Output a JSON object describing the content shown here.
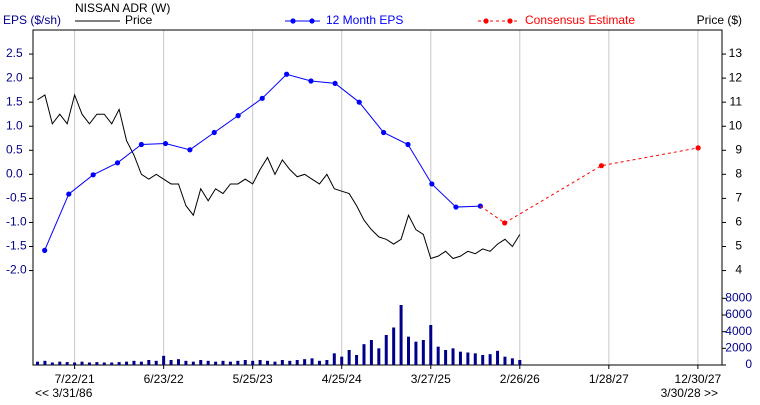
{
  "chart_data": {
    "type": "line",
    "title": "NISSAN ADR (W)",
    "y_label": "EPS ($/sh)",
    "y2_label": "Price ($)",
    "range_start_label": "<< 3/31/86",
    "range_end_label": "3/30/28 >>",
    "grid": "x",
    "xlim": [
      "2/15/21",
      "3/30/28"
    ],
    "xticks": [
      "7/22/21",
      "6/23/22",
      "5/25/23",
      "4/25/24",
      "3/27/25",
      "2/26/26",
      "1/28/27",
      "12/30/27"
    ],
    "ylim": [
      -2.3,
      3.0
    ],
    "yticks": [
      {
        "value": -2,
        "label": "-2.0"
      },
      -1.5,
      {
        "value": -1,
        "label": "-1.0"
      },
      -0.5,
      {
        "value": 0,
        "label": "0.0"
      },
      0.5,
      {
        "value": 1,
        "label": "1.0"
      },
      1.5,
      {
        "value": 2,
        "label": "2.0"
      },
      2.5
    ],
    "y2lim": [
      3.4,
      14.0
    ],
    "y2ticks": [
      4,
      5,
      6,
      7,
      8,
      9,
      10,
      11,
      12,
      13
    ],
    "series": [
      {
        "name": "Price",
        "color": "#000000",
        "axis": "y2",
        "x": [
          "3/4/21",
          "4/1/21",
          "4/29/21",
          "5/27/21",
          "6/24/21",
          "7/22/21",
          "8/19/21",
          "9/16/21",
          "10/14/21",
          "11/11/21",
          "12/9/21",
          "1/6/22",
          "2/3/22",
          "3/3/22",
          "3/31/22",
          "4/28/22",
          "5/26/22",
          "6/23/22",
          "7/21/22",
          "8/18/22",
          "9/15/22",
          "10/13/22",
          "11/10/22",
          "12/8/22",
          "1/5/23",
          "2/2/23",
          "3/2/23",
          "3/30/23",
          "4/27/23",
          "5/25/23",
          "6/22/23",
          "7/20/23",
          "8/17/23",
          "9/14/23",
          "10/12/23",
          "11/9/23",
          "12/7/23",
          "1/4/24",
          "2/1/24",
          "2/29/24",
          "3/28/24",
          "4/25/24",
          "5/23/24",
          "6/20/24",
          "7/18/24",
          "8/15/24",
          "9/12/24",
          "10/10/24",
          "11/7/24",
          "12/5/24",
          "1/2/25",
          "1/30/25",
          "2/27/25",
          "3/27/25",
          "4/24/25",
          "5/22/25",
          "6/19/25",
          "7/17/25",
          "8/14/25",
          "9/11/25",
          "10/9/25",
          "11/6/25",
          "12/4/25",
          "1/1/26",
          "1/29/26",
          "2/26/26"
        ],
        "values": [
          11.1,
          11.3,
          10.1,
          10.5,
          10.1,
          11.3,
          10.5,
          10.1,
          10.5,
          10.5,
          10.1,
          10.7,
          9.4,
          8.8,
          8.0,
          7.8,
          8.0,
          7.8,
          7.6,
          7.6,
          6.7,
          6.3,
          7.4,
          6.9,
          7.4,
          7.2,
          7.6,
          7.6,
          7.8,
          7.6,
          8.2,
          8.7,
          8.0,
          8.6,
          8.2,
          7.9,
          8.0,
          7.8,
          7.6,
          8.0,
          7.4,
          7.3,
          7.2,
          6.7,
          6.1,
          5.7,
          5.4,
          5.3,
          5.1,
          5.3,
          6.3,
          5.7,
          5.5,
          4.5,
          4.6,
          4.8,
          4.5,
          4.6,
          4.8,
          4.7,
          4.9,
          4.8,
          5.1,
          5.3,
          5.0,
          5.5
        ]
      },
      {
        "name": "12 Month EPS",
        "color": "#0000ff",
        "x": [
          "3/31/21",
          "6/30/21",
          "9/30/21",
          "12/31/21",
          "3/31/22",
          "6/30/22",
          "9/30/22",
          "12/31/22",
          "3/31/23",
          "6/30/23",
          "9/30/23",
          "12/31/23",
          "3/31/24",
          "6/30/24",
          "9/30/24",
          "12/31/24",
          "3/31/25",
          "6/30/25",
          "9/30/25"
        ],
        "values": [
          -1.58,
          -0.41,
          -0.01,
          0.24,
          0.62,
          0.64,
          0.51,
          0.87,
          1.22,
          1.58,
          2.08,
          1.94,
          1.89,
          1.5,
          0.87,
          0.62,
          -0.2,
          -0.68,
          -0.66
        ]
      },
      {
        "name": "Consensus Estimate",
        "color": "#ff0000",
        "dashed": true,
        "x": [
          "12/31/25",
          "12/31/26",
          "12/31/27"
        ],
        "values": [
          -1.01,
          0.18,
          0.55
        ]
      }
    ],
    "volume": {
      "type": "bar",
      "color": "#00008b",
      "ylim": [
        0,
        9000
      ],
      "yticks": [
        0,
        2000,
        4000,
        6000,
        8000
      ],
      "values": [
        400,
        500,
        300,
        400,
        350,
        300,
        400,
        300,
        350,
        300,
        300,
        350,
        400,
        500,
        400,
        600,
        500,
        1100,
        600,
        700,
        500,
        400,
        600,
        500,
        400,
        500,
        400,
        500,
        600,
        500,
        600,
        500,
        400,
        600,
        500,
        600,
        700,
        800,
        500,
        600,
        1400,
        1000,
        1800,
        1200,
        2500,
        3000,
        2000,
        3600,
        4500,
        7200,
        3400,
        2800,
        3000,
        4800,
        2200,
        1800,
        2000,
        1600,
        1500,
        1400,
        1200,
        1300,
        1700,
        1000,
        800,
        600
      ]
    }
  }
}
